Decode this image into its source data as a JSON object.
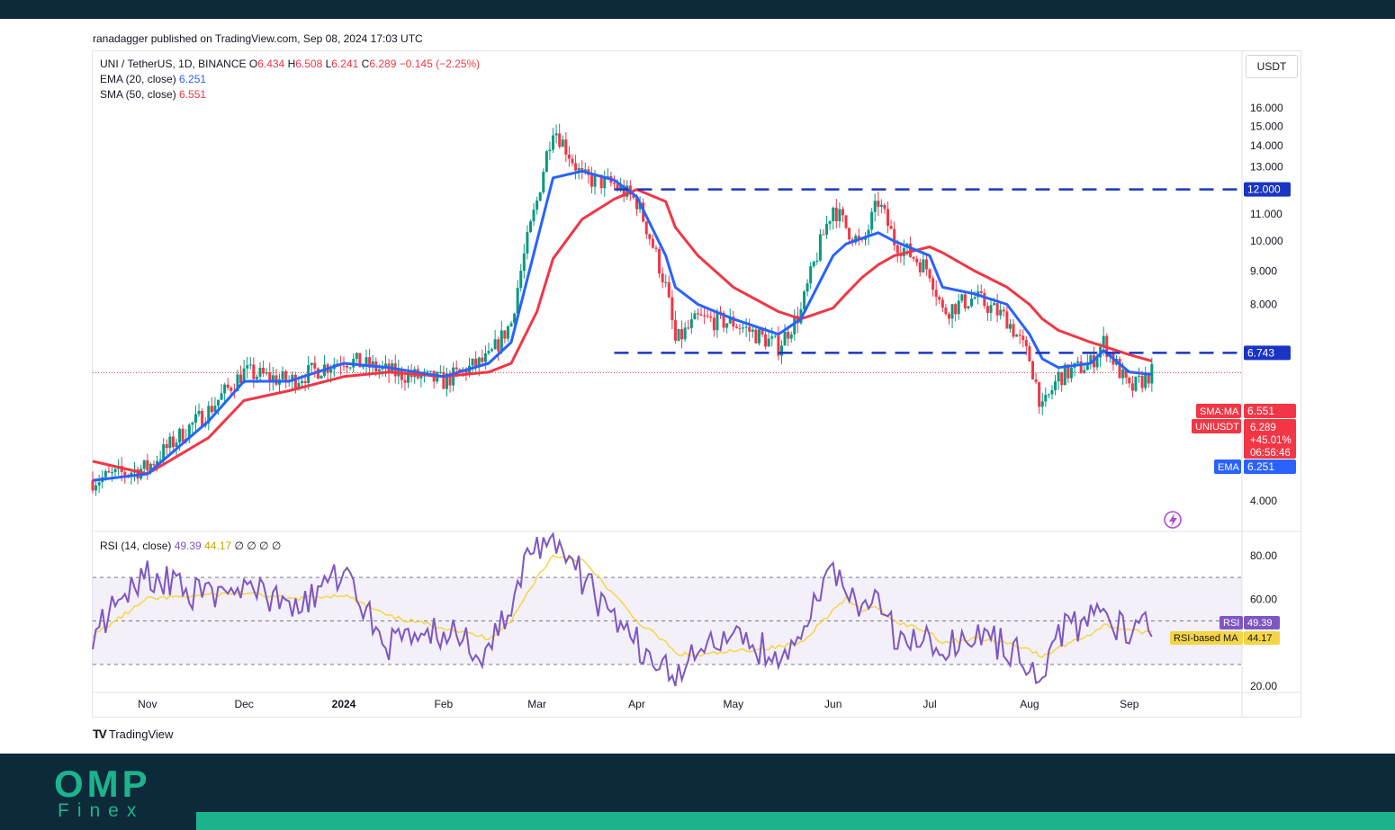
{
  "publisher": "ranadagger published on TradingView.com, Sep 08, 2024 17:03 UTC",
  "legend": {
    "symbol": "UNI / TetherUS, 1D, BINANCE",
    "o_label": "O",
    "o": "6.434",
    "h_label": "H",
    "h": "6.508",
    "l_label": "L",
    "l": "6.241",
    "c_label": "C",
    "c": "6.289",
    "change": "−0.145 (−2.25%)",
    "ema_label": "EMA (20, close)",
    "ema_value": "6.251",
    "sma_label": "SMA (50, close)",
    "sma_value": "6.551",
    "rsi_label": "RSI (14, close)",
    "rsi_value": "49.39",
    "rsi_ma_value": "44.17",
    "rsi_extra": "∅ ∅ ∅ ∅"
  },
  "currency_button": "USDT",
  "tradingview_label": "TradingView",
  "brand": {
    "name": "OMP",
    "sub": "Finex"
  },
  "colors": {
    "up": "#089981",
    "down": "#f23645",
    "ema": "#2962ff",
    "sma": "#f23645",
    "rsi": "#7e57c2",
    "rsi_ma": "#f5d547",
    "level": "#1a35c4",
    "header": "#0d2a3a",
    "brand": "#1cb38d"
  },
  "chart_data": [
    {
      "type": "candlestick",
      "title": "UNI / TetherUS, 1D, BINANCE",
      "x": [
        "Nov",
        "Dec",
        "2024",
        "Feb",
        "Mar",
        "Apr",
        "May",
        "Jun",
        "Jul",
        "Aug",
        "Sep"
      ],
      "y_ticks": [
        "16.000",
        "15.000",
        "14.000",
        "13.000",
        "12.000",
        "11.000",
        "10.000",
        "9.000",
        "8.000",
        "4.000"
      ],
      "ylim": [
        3.6,
        18.0
      ],
      "key_points": {
        "dates": [
          "2023-10-15",
          "2023-11-01",
          "2023-11-20",
          "2023-12-01",
          "2023-12-15",
          "2024-01-01",
          "2024-01-15",
          "2024-02-01",
          "2024-02-15",
          "2024-02-22",
          "2024-03-01",
          "2024-03-06",
          "2024-03-15",
          "2024-03-25",
          "2024-04-01",
          "2024-04-10",
          "2024-04-13",
          "2024-04-20",
          "2024-05-01",
          "2024-05-15",
          "2024-05-22",
          "2024-06-01",
          "2024-06-05",
          "2024-06-10",
          "2024-06-15",
          "2024-06-20",
          "2024-07-01",
          "2024-07-05",
          "2024-07-15",
          "2024-07-25",
          "2024-08-01",
          "2024-08-05",
          "2024-08-10",
          "2024-08-20",
          "2024-08-24",
          "2024-09-01",
          "2024-09-08"
        ],
        "close": [
          4.3,
          4.5,
          5.5,
          6.3,
          6.1,
          6.6,
          6.3,
          6.1,
          6.6,
          7.5,
          11.5,
          15.0,
          12.5,
          12.2,
          11.5,
          8.5,
          7.0,
          7.6,
          7.5,
          6.9,
          7.8,
          11.3,
          10.5,
          9.8,
          11.5,
          10.0,
          9.0,
          7.8,
          8.2,
          7.6,
          6.6,
          5.5,
          6.2,
          6.5,
          7.0,
          5.9,
          6.289
        ]
      },
      "ema": {
        "name": "EMA (20, close)",
        "last": 6.251,
        "values": [
          4.3,
          4.4,
          5.3,
          6.1,
          6.1,
          6.5,
          6.4,
          6.2,
          6.5,
          7.0,
          10.0,
          12.5,
          12.8,
          12.4,
          11.7,
          9.5,
          8.5,
          8.0,
          7.6,
          7.2,
          7.6,
          9.5,
          9.9,
          10.1,
          10.3,
          10.0,
          9.5,
          8.5,
          8.3,
          8.0,
          7.2,
          6.6,
          6.4,
          6.5,
          6.8,
          6.3,
          6.251
        ]
      },
      "sma": {
        "name": "SMA (50, close)",
        "last": 6.551,
        "values": [
          4.6,
          4.4,
          5.0,
          5.7,
          5.9,
          6.2,
          6.3,
          6.2,
          6.3,
          6.5,
          7.8,
          9.4,
          10.8,
          11.6,
          12.0,
          11.5,
          10.5,
          9.5,
          8.5,
          7.8,
          7.6,
          7.9,
          8.3,
          8.8,
          9.2,
          9.5,
          9.8,
          9.6,
          9.0,
          8.5,
          8.0,
          7.6,
          7.3,
          7.0,
          6.9,
          6.7,
          6.551
        ]
      },
      "levels": [
        12.0,
        6.743
      ],
      "price_labels": {
        "level_high": "12.000",
        "level_low": "6.743",
        "sma_tag": "SMA:MA",
        "sma_val": "6.551",
        "symbol_tag": "UNIUSDT",
        "close_val": "6.289",
        "change_pct": "+45.01%",
        "countdown": "06:56:46",
        "ema_tag": "EMA",
        "ema_val": "6.251"
      }
    },
    {
      "type": "line",
      "title": "RSI (14, close)",
      "y_ticks": [
        "80.00",
        "60.00",
        "20.00"
      ],
      "ylim": [
        18,
        92
      ],
      "bands": [
        70,
        30
      ],
      "series": [
        {
          "name": "RSI",
          "values": [
            45,
            72,
            60,
            68,
            55,
            72,
            40,
            45,
            35,
            60,
            85,
            90,
            70,
            50,
            40,
            30,
            22,
            35,
            40,
            35,
            45,
            75,
            65,
            55,
            60,
            45,
            40,
            35,
            45,
            38,
            30,
            22,
            45,
            50,
            55,
            42,
            49.39
          ]
        },
        {
          "name": "RSI-based MA",
          "values": [
            43,
            60,
            62,
            63,
            60,
            62,
            52,
            47,
            42,
            50,
            70,
            80,
            78,
            62,
            50,
            40,
            35,
            34,
            36,
            38,
            40,
            55,
            60,
            55,
            56,
            50,
            45,
            40,
            42,
            40,
            37,
            33,
            38,
            44,
            48,
            46,
            44.17
          ]
        }
      ],
      "price_labels": {
        "rsi_tag": "RSI",
        "rsi_val": "49.39",
        "ma_tag": "RSI-based MA",
        "ma_val": "44.17"
      }
    }
  ]
}
